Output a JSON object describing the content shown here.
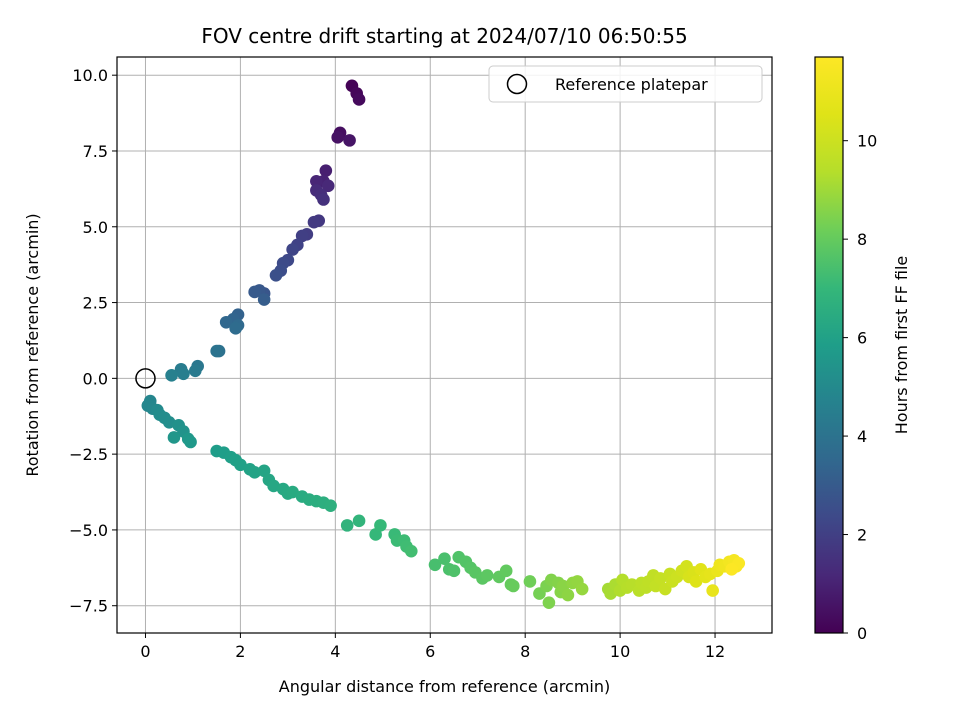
{
  "chart_data": {
    "type": "scatter",
    "title": "FOV centre drift starting at 2024/07/10 06:50:55",
    "xlabel": "Angular distance from reference (arcmin)",
    "ylabel": "Rotation from reference (arcmin)",
    "xlim": [
      -0.6,
      13.2
    ],
    "ylim": [
      -8.4,
      10.6
    ],
    "xticks": [
      0,
      2,
      4,
      6,
      8,
      10,
      12
    ],
    "xtick_labels": [
      "0",
      "2",
      "4",
      "6",
      "8",
      "10",
      "12"
    ],
    "yticks": [
      -7.5,
      -5.0,
      -2.5,
      0.0,
      2.5,
      5.0,
      7.5,
      10.0
    ],
    "ytick_labels": [
      "−7.5",
      "−5.0",
      "−2.5",
      "0.0",
      "2.5",
      "5.0",
      "7.5",
      "10.0"
    ],
    "grid": true,
    "legend": {
      "placement": "top-right",
      "entries": [
        {
          "label": "Reference platepar",
          "marker": "open-circle",
          "color": "#000000"
        }
      ]
    },
    "reference_point": {
      "x": 0,
      "y": 0
    },
    "colorbar": {
      "label": "Hours from first FF file",
      "range": [
        0,
        11.7
      ],
      "ticks": [
        0,
        2,
        4,
        6,
        8,
        10
      ],
      "tick_labels": [
        "0",
        "2",
        "4",
        "6",
        "8",
        "10"
      ],
      "colormap": "viridis"
    },
    "points": [
      [
        4.35,
        9.65,
        0.05
      ],
      [
        4.45,
        9.4,
        0.15
      ],
      [
        4.5,
        9.2,
        0.25
      ],
      [
        4.1,
        8.1,
        0.4
      ],
      [
        4.05,
        7.95,
        0.5
      ],
      [
        4.3,
        7.85,
        0.6
      ],
      [
        3.8,
        6.85,
        0.9
      ],
      [
        3.75,
        6.5,
        1.0
      ],
      [
        3.6,
        6.5,
        1.1
      ],
      [
        3.85,
        6.35,
        1.2
      ],
      [
        3.6,
        6.2,
        1.3
      ],
      [
        3.7,
        6.05,
        1.4
      ],
      [
        3.75,
        5.9,
        1.5
      ],
      [
        3.65,
        5.2,
        1.7
      ],
      [
        3.55,
        5.15,
        1.8
      ],
      [
        3.4,
        4.75,
        1.9
      ],
      [
        3.3,
        4.7,
        2.0
      ],
      [
        3.2,
        4.4,
        2.1
      ],
      [
        3.1,
        4.25,
        2.2
      ],
      [
        3.0,
        3.9,
        2.3
      ],
      [
        2.9,
        3.8,
        2.4
      ],
      [
        2.85,
        3.55,
        2.5
      ],
      [
        2.75,
        3.4,
        2.6
      ],
      [
        2.5,
        2.8,
        2.8
      ],
      [
        2.4,
        2.9,
        2.9
      ],
      [
        2.3,
        2.85,
        3.0
      ],
      [
        2.5,
        2.6,
        3.1
      ],
      [
        1.95,
        2.1,
        3.3
      ],
      [
        1.85,
        1.95,
        3.4
      ],
      [
        1.7,
        1.85,
        3.5
      ],
      [
        1.95,
        1.75,
        3.6
      ],
      [
        1.9,
        1.65,
        3.7
      ],
      [
        1.55,
        0.9,
        3.9
      ],
      [
        1.5,
        0.9,
        4.0
      ],
      [
        1.1,
        0.4,
        4.2
      ],
      [
        1.05,
        0.25,
        4.3
      ],
      [
        0.75,
        0.3,
        4.4
      ],
      [
        0.8,
        0.15,
        4.5
      ],
      [
        0.55,
        0.1,
        4.6
      ],
      [
        0.1,
        -0.75,
        4.8
      ],
      [
        0.05,
        -0.9,
        4.85
      ],
      [
        0.15,
        -1.0,
        4.9
      ],
      [
        0.25,
        -1.05,
        5.0
      ],
      [
        0.3,
        -1.2,
        5.1
      ],
      [
        0.4,
        -1.3,
        5.15
      ],
      [
        0.5,
        -1.45,
        5.2
      ],
      [
        0.7,
        -1.55,
        5.3
      ],
      [
        0.8,
        -1.75,
        5.4
      ],
      [
        0.6,
        -1.95,
        5.5
      ],
      [
        0.9,
        -2.0,
        5.6
      ],
      [
        0.95,
        -2.1,
        5.65
      ],
      [
        1.5,
        -2.4,
        5.8
      ],
      [
        1.65,
        -2.45,
        5.85
      ],
      [
        1.8,
        -2.6,
        5.9
      ],
      [
        1.9,
        -2.7,
        5.95
      ],
      [
        2.0,
        -2.85,
        6.0
      ],
      [
        2.2,
        -3.0,
        6.05
      ],
      [
        2.3,
        -3.1,
        6.1
      ],
      [
        2.5,
        -3.05,
        6.15
      ],
      [
        2.6,
        -3.35,
        6.2
      ],
      [
        2.7,
        -3.55,
        6.25
      ],
      [
        2.9,
        -3.65,
        6.3
      ],
      [
        3.0,
        -3.8,
        6.35
      ],
      [
        3.1,
        -3.75,
        6.4
      ],
      [
        3.3,
        -3.9,
        6.45
      ],
      [
        3.45,
        -4.0,
        6.5
      ],
      [
        3.6,
        -4.05,
        6.55
      ],
      [
        3.75,
        -4.1,
        6.6
      ],
      [
        3.9,
        -4.2,
        6.65
      ],
      [
        4.25,
        -4.85,
        6.8
      ],
      [
        4.5,
        -4.7,
        6.9
      ],
      [
        4.85,
        -5.15,
        7.0
      ],
      [
        4.95,
        -4.85,
        7.05
      ],
      [
        5.25,
        -5.15,
        7.1
      ],
      [
        5.3,
        -5.35,
        7.15
      ],
      [
        5.45,
        -5.35,
        7.2
      ],
      [
        5.5,
        -5.55,
        7.25
      ],
      [
        5.6,
        -5.7,
        7.3
      ],
      [
        6.1,
        -6.15,
        7.4
      ],
      [
        6.3,
        -5.95,
        7.45
      ],
      [
        6.4,
        -6.3,
        7.5
      ],
      [
        6.5,
        -6.35,
        7.55
      ],
      [
        6.6,
        -5.9,
        7.6
      ],
      [
        6.75,
        -6.05,
        7.65
      ],
      [
        6.85,
        -6.25,
        7.7
      ],
      [
        6.95,
        -6.4,
        7.75
      ],
      [
        7.1,
        -6.6,
        7.8
      ],
      [
        7.2,
        -6.5,
        7.85
      ],
      [
        7.45,
        -6.55,
        7.9
      ],
      [
        7.6,
        -6.35,
        7.95
      ],
      [
        7.7,
        -6.8,
        8.0
      ],
      [
        7.75,
        -6.85,
        8.05
      ],
      [
        8.1,
        -6.7,
        8.2
      ],
      [
        8.3,
        -7.1,
        8.3
      ],
      [
        8.45,
        -6.85,
        8.4
      ],
      [
        8.5,
        -7.4,
        8.45
      ],
      [
        8.55,
        -6.65,
        8.5
      ],
      [
        8.7,
        -6.75,
        8.55
      ],
      [
        8.75,
        -7.05,
        8.6
      ],
      [
        8.8,
        -6.85,
        8.65
      ],
      [
        8.9,
        -7.15,
        8.7
      ],
      [
        9.0,
        -6.75,
        8.75
      ],
      [
        9.1,
        -6.7,
        8.8
      ],
      [
        9.2,
        -6.95,
        8.85
      ],
      [
        9.75,
        -6.95,
        9.1
      ],
      [
        9.8,
        -7.1,
        9.15
      ],
      [
        9.9,
        -6.8,
        9.2
      ],
      [
        10.0,
        -7.0,
        9.3
      ],
      [
        10.05,
        -6.65,
        9.35
      ],
      [
        10.15,
        -6.9,
        9.4
      ],
      [
        10.25,
        -6.8,
        9.45
      ],
      [
        10.4,
        -7.0,
        9.5
      ],
      [
        10.45,
        -6.75,
        9.55
      ],
      [
        10.55,
        -6.9,
        9.6
      ],
      [
        10.6,
        -6.7,
        9.65
      ],
      [
        10.7,
        -6.5,
        9.7
      ],
      [
        10.75,
        -6.85,
        9.75
      ],
      [
        10.85,
        -6.6,
        9.8
      ],
      [
        10.95,
        -6.95,
        9.85
      ],
      [
        11.05,
        -6.45,
        9.9
      ],
      [
        11.1,
        -6.7,
        9.95
      ],
      [
        11.2,
        -6.55,
        10.0
      ],
      [
        11.3,
        -6.35,
        10.1
      ],
      [
        11.4,
        -6.2,
        10.2
      ],
      [
        11.45,
        -6.55,
        10.3
      ],
      [
        11.55,
        -6.4,
        10.4
      ],
      [
        11.6,
        -6.7,
        10.5
      ],
      [
        11.7,
        -6.3,
        10.6
      ],
      [
        11.8,
        -6.55,
        10.7
      ],
      [
        11.9,
        -6.45,
        10.8
      ],
      [
        11.95,
        -7.0,
        10.9
      ],
      [
        12.05,
        -6.35,
        11.0
      ],
      [
        12.1,
        -6.15,
        11.1
      ],
      [
        12.2,
        -6.2,
        11.2
      ],
      [
        12.3,
        -6.05,
        11.3
      ],
      [
        12.4,
        -6.0,
        11.4
      ],
      [
        12.45,
        -6.2,
        11.5
      ],
      [
        12.5,
        -6.1,
        11.6
      ],
      [
        12.35,
        -6.3,
        11.65
      ]
    ]
  }
}
